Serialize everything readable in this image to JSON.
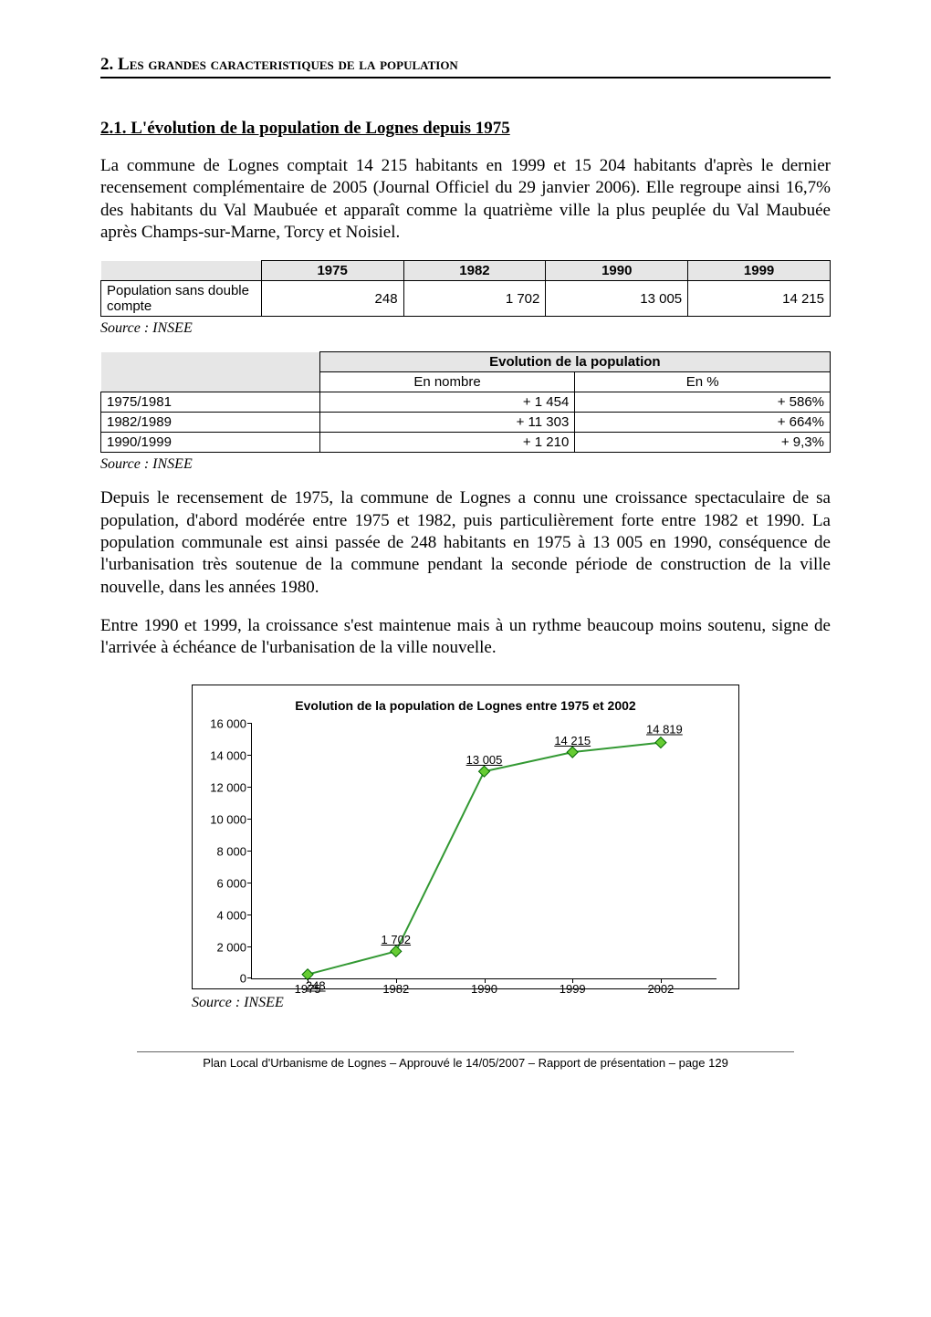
{
  "header": {
    "num": "2.",
    "title_pre": " L",
    "title_smallcaps": "es grandes caracteristiques de la population"
  },
  "sub": {
    "title": "2.1. L'évolution de la population de Lognes depuis 1975"
  },
  "para1": "La commune de Lognes comptait 14 215 habitants en 1999 et 15 204 habitants d'après le dernier recensement complémentaire de 2005 (Journal Officiel du 29 janvier 2006). Elle regroupe ainsi 16,7% des habitants du Val Maubuée et apparaît comme la quatrième ville la plus peuplée du Val Maubuée après Champs-sur-Marne, Torcy et Noisiel.",
  "table1": {
    "headers": [
      "1975",
      "1982",
      "1990",
      "1999"
    ],
    "row_label": "Population sans double compte",
    "row_values": [
      "248",
      "1 702",
      "13 005",
      "14 215"
    ]
  },
  "source_label": "Source : INSEE",
  "table2": {
    "super_header": "Evolution de la population",
    "sub_headers": [
      "En nombre",
      "En %"
    ],
    "rows": [
      {
        "label": "1975/1981",
        "nombre": "+ 1 454",
        "pct": "+ 586%"
      },
      {
        "label": "1982/1989",
        "nombre": "+ 11 303",
        "pct": "+ 664%"
      },
      {
        "label": "1990/1999",
        "nombre": "+ 1 210",
        "pct": "+ 9,3%"
      }
    ]
  },
  "para2": "Depuis le recensement de 1975, la commune de Lognes a connu une croissance spectaculaire de sa population, d'abord modérée entre 1975 et 1982, puis particulièrement forte entre 1982 et 1990. La population communale est ainsi passée de 248 habitants en 1975 à 13 005 en 1990, conséquence de l'urbanisation très soutenue de la commune pendant la seconde période de construction de la ville nouvelle, dans les années 1980.",
  "para3": "Entre 1990 et 1999, la croissance s'est maintenue mais à un rythme beaucoup moins soutenu, signe de l'arrivée à échéance de l'urbanisation de la ville nouvelle.",
  "chart": {
    "title": "Evolution de la population de Lognes entre 1975 et 2002",
    "ymax": 16000,
    "ytick_step": 2000,
    "yticks": [
      "0",
      "2 000",
      "4 000",
      "6 000",
      "8 000",
      "10 000",
      "12 000",
      "14 000",
      "16 000"
    ],
    "categories": [
      "1975",
      "1982",
      "1990",
      "1999",
      "2002"
    ],
    "values": [
      248,
      1702,
      13005,
      14215,
      14819
    ],
    "value_labels": [
      "248",
      "1 702",
      "13 005",
      "14 215",
      "14 819"
    ],
    "line_color": "#339933",
    "marker_fill": "#66cc33",
    "marker_stroke": "#006600",
    "marker_size": 6,
    "line_width": 2
  },
  "footer": "Plan Local d'Urbanisme de Lognes – Approuvé le 14/05/2007 – Rapport de présentation – page 129"
}
